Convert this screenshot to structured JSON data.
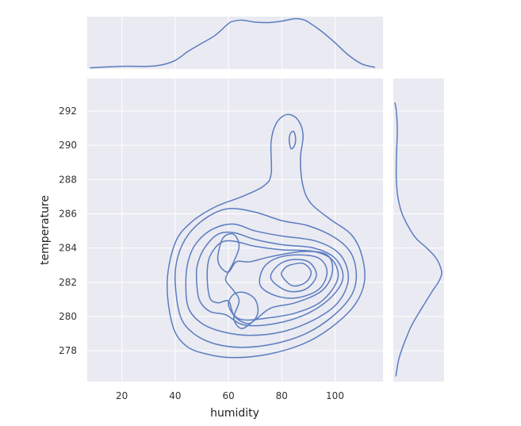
{
  "chart_data": {
    "type": "kde-joint",
    "title": "",
    "xlabel": "humidity",
    "ylabel": "temperature",
    "xlim": [
      7,
      118
    ],
    "ylim": [
      276.2,
      293.9
    ],
    "x_ticks": [
      20,
      40,
      60,
      80,
      100
    ],
    "y_ticks": [
      278,
      280,
      282,
      284,
      286,
      288,
      290,
      292
    ],
    "grid": true,
    "line_color": "#5b7cbf",
    "panel_bg": "#eaeaf2",
    "contour_levels": [
      {
        "level": 1,
        "points": [
          [
            37,
            282
          ],
          [
            39,
            279.5
          ],
          [
            44,
            278.3
          ],
          [
            52,
            277.8
          ],
          [
            62,
            277.6
          ],
          [
            75,
            277.8
          ],
          [
            88,
            278.4
          ],
          [
            98,
            279.3
          ],
          [
            107,
            280.6
          ],
          [
            111,
            282
          ],
          [
            110,
            283.6
          ],
          [
            106,
            284.8
          ],
          [
            98,
            285.7
          ],
          [
            91,
            286.6
          ],
          [
            88,
            287.6
          ],
          [
            87,
            289.2
          ],
          [
            88,
            290.6
          ],
          [
            86,
            291.5
          ],
          [
            82,
            291.8
          ],
          [
            78,
            291.3
          ],
          [
            76,
            290.2
          ],
          [
            76,
            288.3
          ],
          [
            73,
            287.6
          ],
          [
            65,
            287
          ],
          [
            55,
            286.4
          ],
          [
            46,
            285.5
          ],
          [
            40,
            284.3
          ]
        ]
      },
      {
        "level": 2,
        "points": [
          [
            40,
            282
          ],
          [
            42,
            280
          ],
          [
            47,
            279
          ],
          [
            55,
            278.4
          ],
          [
            65,
            278.2
          ],
          [
            77,
            278.4
          ],
          [
            89,
            279
          ],
          [
            99,
            280
          ],
          [
            106,
            281.2
          ],
          [
            108,
            282.4
          ],
          [
            106,
            283.7
          ],
          [
            100,
            284.6
          ],
          [
            90,
            285.3
          ],
          [
            80,
            285.6
          ],
          [
            70,
            286.1
          ],
          [
            60,
            286.3
          ],
          [
            52,
            285.8
          ],
          [
            45,
            284.8
          ],
          [
            41,
            283.5
          ]
        ]
      },
      {
        "level": 3,
        "points": [
          [
            44,
            282
          ],
          [
            45,
            280.5
          ],
          [
            50,
            279.6
          ],
          [
            58,
            279.1
          ],
          [
            68,
            278.9
          ],
          [
            80,
            279.1
          ],
          [
            92,
            279.8
          ],
          [
            101,
            280.8
          ],
          [
            105,
            282.2
          ],
          [
            102,
            283.6
          ],
          [
            93,
            284.4
          ],
          [
            80,
            284.7
          ],
          [
            70,
            285
          ],
          [
            62,
            285.4
          ],
          [
            54,
            285.1
          ],
          [
            48,
            284.3
          ],
          [
            45,
            283.3
          ]
        ]
      },
      {
        "level": 4,
        "points": [
          [
            48,
            282.3
          ],
          [
            49,
            281
          ],
          [
            53,
            280.3
          ],
          [
            59,
            280.1
          ],
          [
            66,
            279.5
          ],
          [
            78,
            279.6
          ],
          [
            90,
            280.2
          ],
          [
            99,
            281.2
          ],
          [
            103,
            282.3
          ],
          [
            100,
            283.4
          ],
          [
            92,
            284
          ],
          [
            80,
            284.2
          ],
          [
            70,
            284.5
          ],
          [
            62,
            284.9
          ],
          [
            56,
            284.8
          ],
          [
            51,
            284
          ],
          [
            48.5,
            283.1
          ]
        ]
      },
      {
        "level": 5,
        "points": [
          [
            52,
            282.4
          ],
          [
            53,
            281.1
          ],
          [
            56,
            280.8
          ],
          [
            60,
            280.9
          ],
          [
            62,
            280.1
          ],
          [
            66,
            279.8
          ],
          [
            74,
            279.9
          ],
          [
            85,
            280.2
          ],
          [
            95,
            280.9
          ],
          [
            101,
            282.2
          ],
          [
            99,
            283.3
          ],
          [
            92,
            283.8
          ],
          [
            80,
            283.9
          ],
          [
            70,
            284.1
          ],
          [
            62,
            284.4
          ],
          [
            57,
            284.3
          ],
          [
            53,
            283.5
          ]
        ]
      },
      {
        "level": 6,
        "points": [
          [
            56,
            283.5
          ],
          [
            58,
            284.6
          ],
          [
            62,
            284.8
          ],
          [
            64,
            284.1
          ],
          [
            62,
            283.2
          ],
          [
            60,
            282.6
          ],
          [
            59,
            282.1
          ],
          [
            62,
            281.5
          ],
          [
            64,
            280.9
          ],
          [
            62,
            279.9
          ],
          [
            65,
            279.3
          ],
          [
            70,
            279.8
          ],
          [
            76,
            280.5
          ],
          [
            85,
            280.8
          ],
          [
            95,
            281.5
          ],
          [
            99,
            282.6
          ],
          [
            97,
            283.6
          ],
          [
            88,
            283.8
          ],
          [
            76,
            283.5
          ],
          [
            68,
            283.2
          ],
          [
            63,
            283.2
          ],
          [
            60,
            282.6
          ],
          [
            57,
            282.9
          ]
        ]
      },
      {
        "level": 7,
        "points": [
          [
            60,
            280.7
          ],
          [
            63,
            279.9
          ],
          [
            68,
            279.6
          ],
          [
            71,
            280.2
          ],
          [
            70,
            281
          ],
          [
            66,
            281.4
          ],
          [
            62,
            281.3
          ]
        ]
      },
      {
        "level": 8,
        "points": [
          [
            72,
            281.8
          ],
          [
            78,
            281.2
          ],
          [
            86,
            281.1
          ],
          [
            94,
            281.6
          ],
          [
            97,
            282.6
          ],
          [
            94,
            283.4
          ],
          [
            86,
            283.6
          ],
          [
            78,
            283.4
          ],
          [
            73,
            282.8
          ]
        ]
      },
      {
        "level": 9,
        "points": [
          [
            76,
            282.2
          ],
          [
            82,
            281.5
          ],
          [
            89,
            281.6
          ],
          [
            93,
            282.4
          ],
          [
            90,
            283.2
          ],
          [
            83,
            283.3
          ],
          [
            78,
            282.9
          ]
        ]
      },
      {
        "level": 10,
        "points": [
          [
            80,
            282.4
          ],
          [
            84,
            281.8
          ],
          [
            89,
            282
          ],
          [
            91,
            282.6
          ],
          [
            88,
            283.1
          ],
          [
            83,
            283
          ],
          [
            81,
            282.8
          ]
        ]
      },
      {
        "level": 11,
        "points": [
          [
            82.8,
            290.3
          ],
          [
            83.5,
            289.8
          ],
          [
            84.8,
            290
          ],
          [
            85.2,
            290.4
          ],
          [
            84.5,
            290.8
          ],
          [
            83.3,
            290.7
          ]
        ]
      }
    ],
    "marginal_x": {
      "variable": "humidity",
      "x": [
        8,
        20,
        30,
        35,
        40,
        45,
        50,
        55,
        60,
        62,
        65,
        70,
        75,
        80,
        85,
        88,
        90,
        95,
        100,
        105,
        110,
        115
      ],
      "density": [
        0.0,
        0.03,
        0.03,
        0.06,
        0.15,
        0.34,
        0.5,
        0.66,
        0.9,
        0.95,
        0.97,
        0.93,
        0.92,
        0.95,
        1.0,
        0.98,
        0.93,
        0.74,
        0.51,
        0.26,
        0.08,
        0.01
      ]
    },
    "marginal_y": {
      "variable": "temperature",
      "y": [
        276.5,
        277.5,
        278.5,
        279.5,
        280.5,
        281.5,
        282,
        282.5,
        283,
        283.5,
        284,
        284.5,
        285,
        286,
        287,
        288,
        289,
        290,
        291,
        292,
        292.5
      ],
      "density": [
        0.02,
        0.08,
        0.2,
        0.35,
        0.56,
        0.78,
        0.9,
        0.97,
        0.93,
        0.83,
        0.66,
        0.46,
        0.33,
        0.15,
        0.06,
        0.03,
        0.03,
        0.04,
        0.05,
        0.03,
        0.0
      ]
    }
  }
}
